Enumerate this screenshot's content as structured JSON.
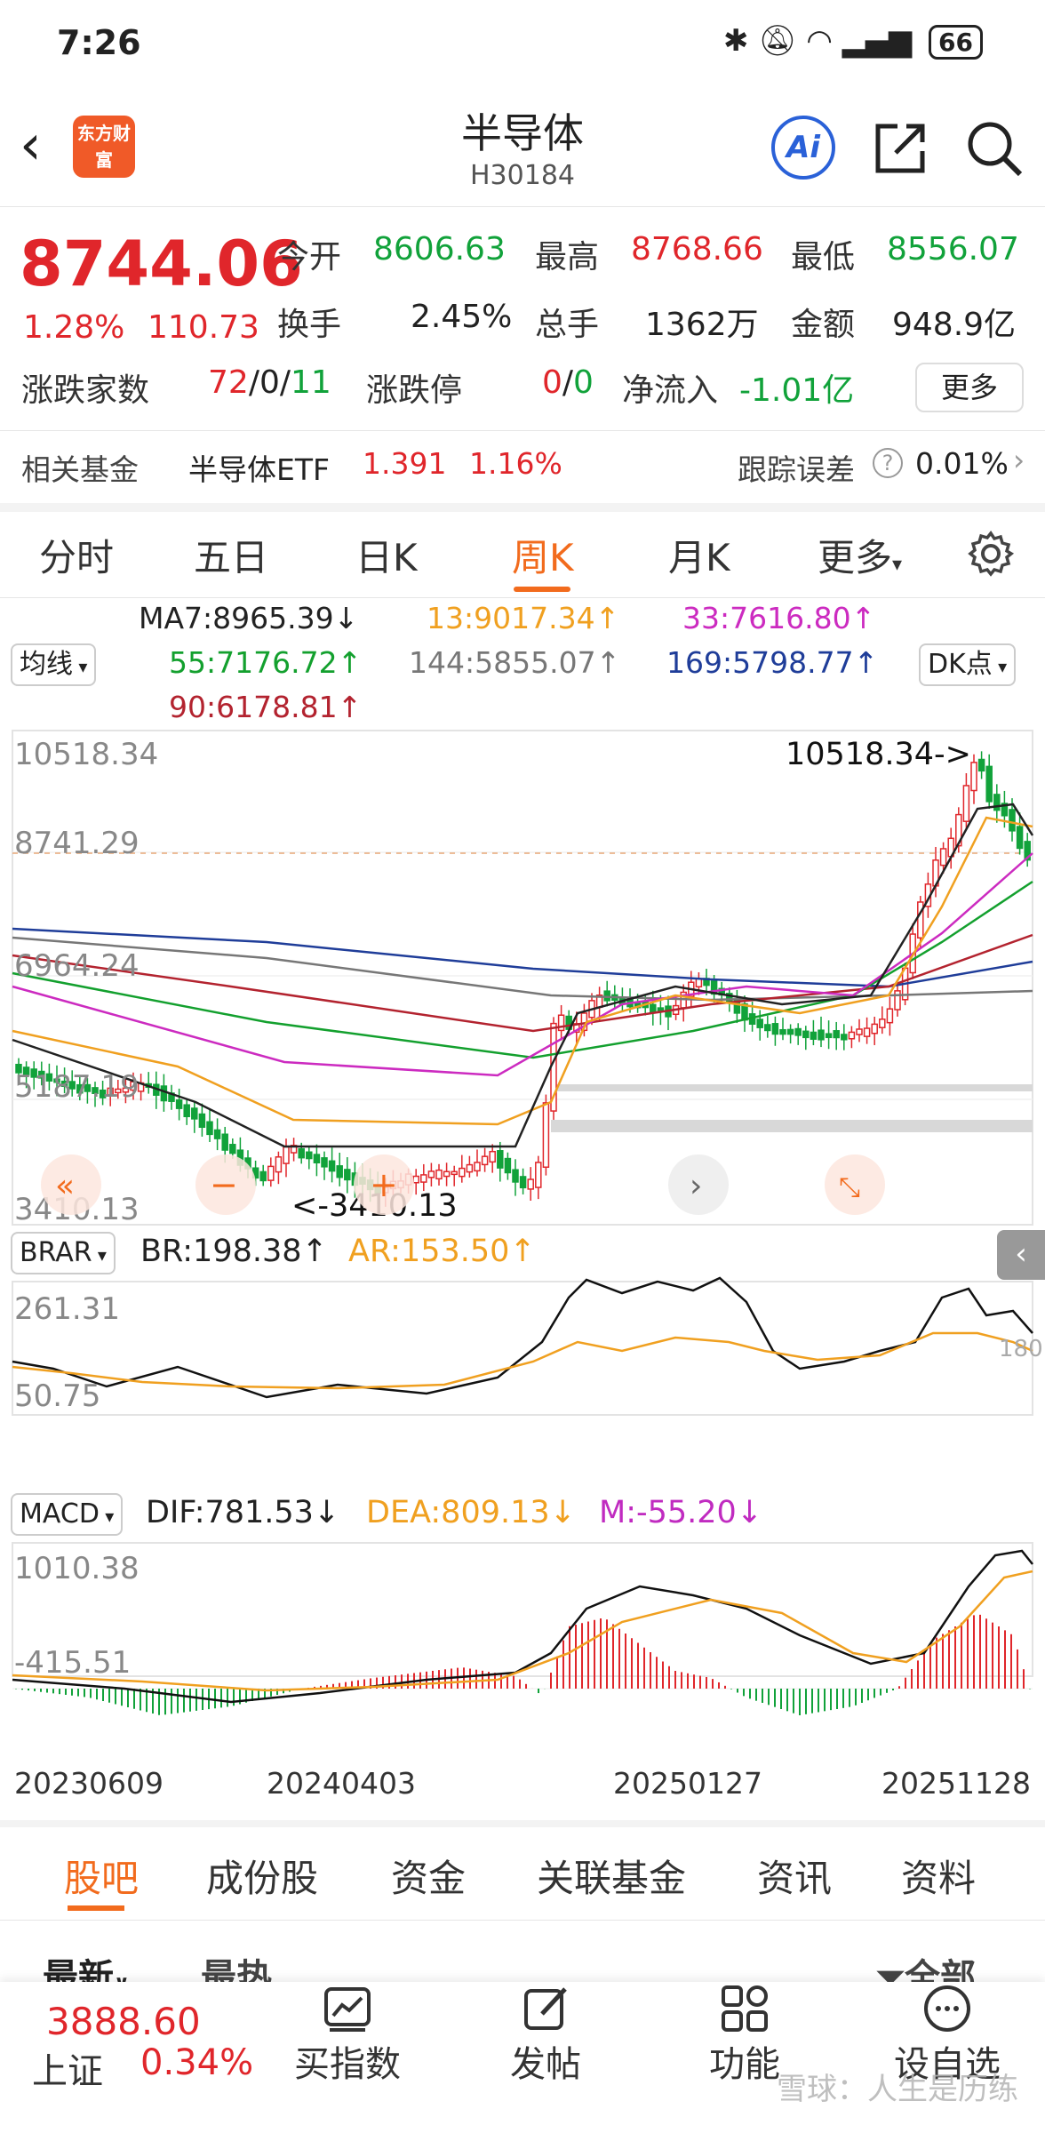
{
  "status_bar": {
    "time": "7:26",
    "battery": "66"
  },
  "header": {
    "logo_text": "东方财富",
    "title": "半导体",
    "code": "H30184",
    "ai_label": "Ai"
  },
  "quote": {
    "price": "8744.06",
    "change_pct": "1.28%",
    "change_abs": "110.73",
    "open_label": "今开",
    "open": "8606.63",
    "high_label": "最高",
    "high": "8768.66",
    "low_label": "最低",
    "low": "8556.07",
    "turnover_label": "换手",
    "turnover": "2.45%",
    "volume_label": "总手",
    "volume": "1362万",
    "amount_label": "金额",
    "amount": "948.9亿",
    "breadth_label": "涨跌家数",
    "breadth_up": "72",
    "breadth_flat": "0",
    "breadth_down": "11",
    "limit_label": "涨跌停",
    "limit_up": "0",
    "limit_down": "0",
    "netflow_label": "净流入",
    "netflow": "-1.01亿",
    "more_label": "更多"
  },
  "fund": {
    "label": "相关基金",
    "name": "半导体ETF",
    "price": "1.391",
    "pct": "1.16%",
    "tracking_label": "跟踪误差",
    "tracking_value": "0.01%"
  },
  "tabs": [
    "分时",
    "五日",
    "日K",
    "周K",
    "月K",
    "更多"
  ],
  "ma": {
    "selector": "均线",
    "ma7": "MA7:8965.39↓",
    "ma13": "13:9017.34↑",
    "ma33": "33:7616.80↑",
    "ma55": "55:7176.72↑",
    "ma144": "144:5855.07↑",
    "ma169": "169:5798.77↑",
    "ma90": "90:6178.81↑",
    "dk": "DK点"
  },
  "colors": {
    "ma7": "#222222",
    "ma13": "#f0a020",
    "ma33": "#cc2bc0",
    "ma55": "#13a02e",
    "ma144": "#777777",
    "ma169": "#1f3d99",
    "ma90": "#b3232f",
    "up": "#e0262b",
    "down": "#11a23a",
    "accent": "#f26b1d"
  },
  "price_axis": [
    "10518.34",
    "8741.29",
    "6964.24",
    "5187.19",
    "3410.13"
  ],
  "annotations": {
    "high": "10518.34->",
    "low": "<-3410.13"
  },
  "brar": {
    "selector": "BRAR",
    "br": "BR:198.38↑",
    "ar": "AR:153.50↑",
    "axis_top": "261.31",
    "axis_bottom": "50.75",
    "side_value": "180"
  },
  "macd": {
    "selector": "MACD",
    "dif": "DIF:781.53↓",
    "dea": "DEA:809.13↓",
    "m": "M:-55.20↓",
    "axis_top": "1010.38",
    "axis_bottom": "-415.51"
  },
  "dates": [
    "20230609",
    "20240403",
    "20250127",
    "20251128"
  ],
  "bottom_tabs": [
    "股吧",
    "成份股",
    "资金",
    "关联基金",
    "资讯",
    "资料"
  ],
  "sub_tabs": {
    "latest": "最新",
    "hot": "最热",
    "all": "全部"
  },
  "bottom_nav": {
    "index_value": "3888.60",
    "index_name": "上证",
    "index_pct": "0.34%",
    "buy": "买指数",
    "post": "发帖",
    "func": "功能",
    "watch": "设自选"
  },
  "watermark": "雪球：人生是历练"
}
